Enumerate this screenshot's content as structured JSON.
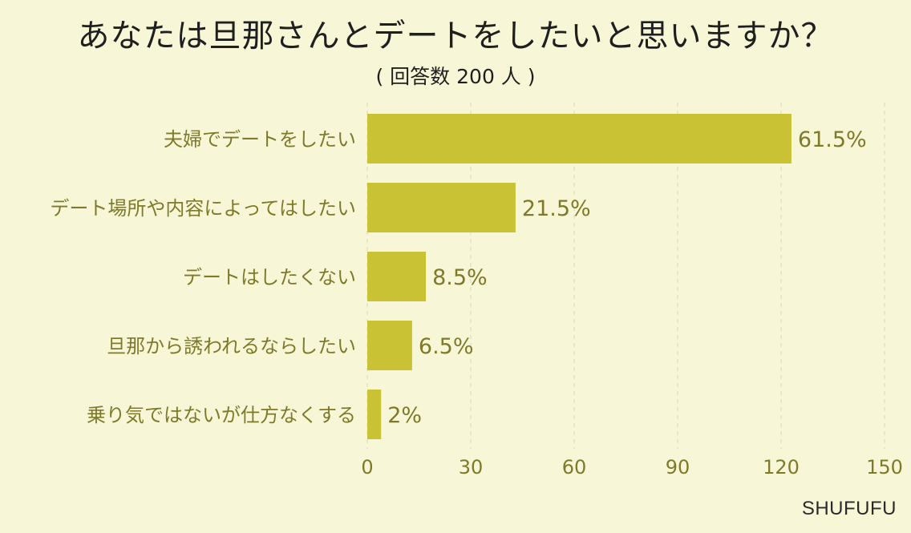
{
  "title": "あなたは旦那さんとデートをしたいと思いますか？",
  "subtitle": "( 回答数 200 人 )",
  "watermark": "SHUFUFU",
  "colors": {
    "background": "#f7f7d7",
    "bar": "#c9c234",
    "text": "#7f7a2a",
    "grid": "#d7d6b8"
  },
  "chart_data": {
    "type": "bar",
    "orientation": "horizontal",
    "title": "あなたは旦那さんとデートをしたいと思いますか？",
    "subtitle": "( 回答数 200 人 )",
    "categories": [
      "夫婦でデートをしたい",
      "デート場所や内容によってはしたい",
      "デートはしたくない",
      "旦那から誘われるならしたい",
      "乗り気ではないが仕方なくする"
    ],
    "values": [
      123,
      43,
      17,
      13,
      4
    ],
    "value_labels": [
      "61.5%",
      "21.5%",
      "8.5%",
      "6.5%",
      "2%"
    ],
    "xlim": [
      0,
      150
    ],
    "xticks": [
      0,
      30,
      60,
      90,
      120,
      150
    ],
    "xlabel": "",
    "ylabel": "",
    "grid": true
  }
}
